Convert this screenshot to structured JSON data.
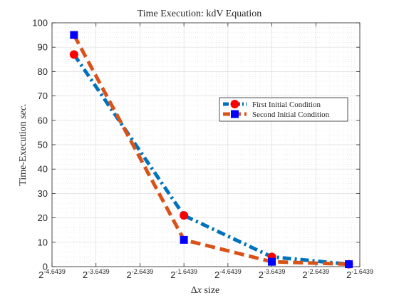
{
  "chart_data": {
    "type": "line",
    "title": "Time Execution: kdV Equation",
    "xlabel_parts": [
      "Δ",
      "x",
      " size"
    ],
    "ylabel_parts": [
      "Time-Execution ",
      "sec."
    ],
    "ylim": [
      0,
      100
    ],
    "y_ticks": [
      "0",
      "10",
      "20",
      "30",
      "40",
      "50",
      "60",
      "70",
      "80",
      "90",
      "100"
    ],
    "x_ticks": [
      {
        "base": "2",
        "exp": "-4.6439"
      },
      {
        "base": "2",
        "exp": "-3.6439"
      },
      {
        "base": "2",
        "exp": "-2.6439"
      },
      {
        "base": "2",
        "exp": "-1.6439"
      },
      {
        "base": "2",
        "exp": "-4.6439"
      },
      {
        "base": "2",
        "exp": "-3.6439"
      },
      {
        "base": "2",
        "exp": "-2.6439"
      },
      {
        "base": "2",
        "exp": "-1.6439"
      }
    ],
    "grid": true,
    "minor_grid": true,
    "legend_position": "right",
    "series": [
      {
        "name": "First Initial Condition",
        "color": "#0072bd",
        "marker_color": "#ff0000",
        "marker": "circle",
        "line_style": "dashdot",
        "x_tick_index": [
          0.5,
          3.0,
          5.0,
          6.75
        ],
        "values": [
          87,
          21,
          4,
          1
        ]
      },
      {
        "name": "Second Initial Condition",
        "color": "#d95319",
        "marker_color": "#0000ff",
        "marker": "square",
        "line_style": "dashed",
        "x_tick_index": [
          0.5,
          3.0,
          5.0,
          6.75
        ],
        "values": [
          95,
          11,
          2,
          1
        ]
      }
    ]
  }
}
